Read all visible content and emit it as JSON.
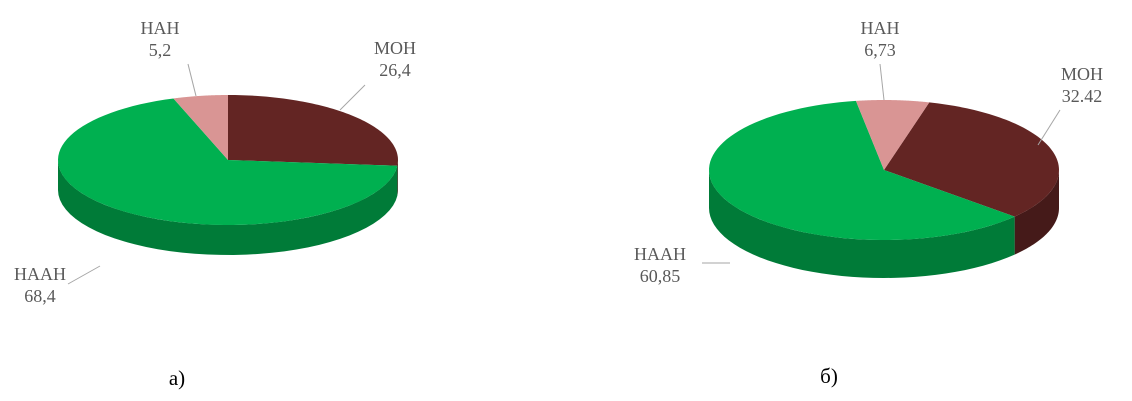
{
  "chart_data": [
    {
      "type": "pie",
      "caption": "а)",
      "categories": [
        "МОН",
        "НААН",
        "НАН"
      ],
      "values": [
        26.4,
        68.4,
        5.2
      ],
      "value_labels": [
        "26,4",
        "68,4",
        "5,2"
      ],
      "colors": [
        "#632523",
        "#00b050",
        "#d99594"
      ]
    },
    {
      "type": "pie",
      "caption": "б)",
      "categories": [
        "МОН",
        "НААН",
        "НАН"
      ],
      "values": [
        32.42,
        60.85,
        6.73
      ],
      "value_labels": [
        "32.42",
        "60,85",
        "6,73"
      ],
      "colors": [
        "#632523",
        "#00b050",
        "#d99594"
      ]
    }
  ]
}
